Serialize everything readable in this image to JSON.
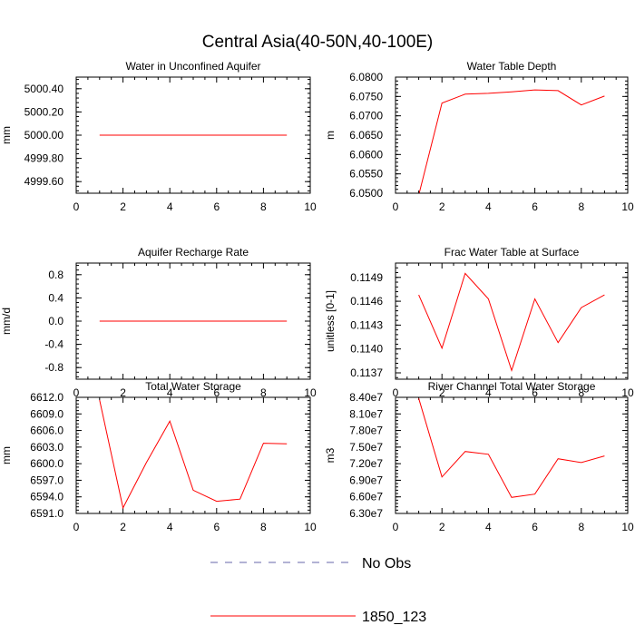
{
  "title": "Central Asia(40-50N,40-100E)",
  "colors": {
    "series": "#ff0000",
    "obs": "#6666aa",
    "axis": "#000000"
  },
  "legend": {
    "items": [
      {
        "label": "No Obs",
        "style": "dashed",
        "color": "#6666aa"
      },
      {
        "label": "1850_123",
        "style": "solid",
        "color": "#ff0000"
      }
    ]
  },
  "chart_data": [
    {
      "type": "line",
      "title": "Water in Unconfined Aquifer",
      "ylabel": "mm",
      "xlim": [
        0,
        10
      ],
      "ylim": [
        4999.5,
        5000.5
      ],
      "xticks": [
        0,
        2,
        4,
        6,
        8,
        10
      ],
      "xtick_labels": [
        "0",
        "2",
        "4",
        "6",
        "8",
        "10"
      ],
      "yticks": [
        4999.6,
        4999.8,
        5000.0,
        5000.2,
        5000.4
      ],
      "ytick_labels": [
        "4999.60",
        "4999.80",
        "5000.00",
        "5000.20",
        "5000.40"
      ],
      "series": [
        {
          "name": "1850_123",
          "x": [
            1,
            2,
            3,
            4,
            5,
            6,
            7,
            8,
            9
          ],
          "values": [
            5000,
            5000,
            5000,
            5000,
            5000,
            5000,
            5000,
            5000,
            5000
          ]
        }
      ]
    },
    {
      "type": "line",
      "title": "Water Table Depth",
      "ylabel": "m",
      "xlim": [
        0,
        10
      ],
      "ylim": [
        6.05,
        6.08
      ],
      "xticks": [
        0,
        2,
        4,
        6,
        8,
        10
      ],
      "xtick_labels": [
        "0",
        "2",
        "4",
        "6",
        "8",
        "10"
      ],
      "yticks": [
        6.05,
        6.055,
        6.06,
        6.065,
        6.07,
        6.075,
        6.08
      ],
      "ytick_labels": [
        "6.0500",
        "6.0550",
        "6.0600",
        "6.0650",
        "6.0700",
        "6.0750",
        "6.0800"
      ],
      "series": [
        {
          "name": "1850_123",
          "x": [
            1,
            2,
            3,
            4,
            5,
            6,
            7,
            8,
            9
          ],
          "values": [
            6.0495,
            6.0733,
            6.0756,
            6.0758,
            6.0762,
            6.0767,
            6.0765,
            6.0728,
            6.0751
          ]
        }
      ]
    },
    {
      "type": "line",
      "title": "Aquifer Recharge Rate",
      "ylabel": "mm/d",
      "xlim": [
        0,
        10
      ],
      "ylim": [
        -1,
        1
      ],
      "xticks": [
        0,
        2,
        4,
        6,
        8,
        10
      ],
      "xtick_labels": [
        "0",
        "2",
        "4",
        "6",
        "8",
        "10"
      ],
      "yticks": [
        -0.8,
        -0.4,
        0,
        0.4,
        0.8
      ],
      "ytick_labels": [
        "-0.8",
        "-0.4",
        "0.0",
        "0.4",
        "0.8"
      ],
      "series": [
        {
          "name": "1850_123",
          "x": [
            1,
            2,
            3,
            4,
            5,
            6,
            7,
            8,
            9
          ],
          "values": [
            0,
            0,
            0,
            0,
            0,
            0,
            0,
            0,
            0
          ]
        }
      ]
    },
    {
      "type": "line",
      "title": "Frac Water Table at Surface",
      "ylabel": "unitless [0-1]",
      "xlim": [
        0,
        10
      ],
      "ylim": [
        0.11362,
        0.11508
      ],
      "xticks": [
        0,
        2,
        4,
        6,
        8,
        10
      ],
      "xtick_labels": [
        "0",
        "2",
        "4",
        "6",
        "8",
        "10"
      ],
      "yticks": [
        0.1137,
        0.114,
        0.1143,
        0.1146,
        0.1149
      ],
      "ytick_labels": [
        "0.1137",
        "0.1140",
        "0.1143",
        "0.1146",
        "0.1149"
      ],
      "series": [
        {
          "name": "1850_123",
          "x": [
            1,
            2,
            3,
            4,
            5,
            6,
            7,
            8,
            9
          ],
          "values": [
            0.11468,
            0.11401,
            0.11495,
            0.11463,
            0.11373,
            0.11463,
            0.11408,
            0.11452,
            0.11468
          ]
        }
      ]
    },
    {
      "type": "line",
      "title": "Total Water Storage",
      "ylabel": "mm",
      "xlim": [
        0,
        10
      ],
      "ylim": [
        6591,
        6612
      ],
      "xticks": [
        0,
        2,
        4,
        6,
        8,
        10
      ],
      "xtick_labels": [
        "0",
        "2",
        "4",
        "6",
        "8",
        "10"
      ],
      "yticks": [
        6591,
        6594,
        6597,
        6600,
        6603,
        6606,
        6609,
        6612
      ],
      "ytick_labels": [
        "6591.0",
        "6594.0",
        "6597.0",
        "6600.0",
        "6603.0",
        "6606.0",
        "6609.0",
        "6612.0"
      ],
      "series": [
        {
          "name": "1850_123",
          "x": [
            1,
            2,
            3,
            4,
            5,
            6,
            7,
            8,
            9
          ],
          "values": [
            6611.5,
            6592.0,
            6600.2,
            6607.7,
            6595.2,
            6593.2,
            6593.6,
            6603.7,
            6603.6
          ]
        }
      ]
    },
    {
      "type": "line",
      "title": "River Channel Total Water Storage",
      "ylabel": "m3",
      "xlim": [
        0,
        10
      ],
      "ylim": [
        63000000,
        84000000
      ],
      "xticks": [
        0,
        2,
        4,
        6,
        8,
        10
      ],
      "xtick_labels": [
        "0",
        "2",
        "4",
        "6",
        "8",
        "10"
      ],
      "yticks": [
        63000000,
        66000000,
        69000000,
        72000000,
        75000000,
        78000000,
        81000000,
        84000000
      ],
      "ytick_labels": [
        "6.30e7",
        "6.60e7",
        "6.90e7",
        "7.20e7",
        "7.50e7",
        "7.80e7",
        "8.10e7",
        "8.40e7"
      ],
      "series": [
        {
          "name": "1850_123",
          "x": [
            1,
            2,
            3,
            4,
            5,
            6,
            7,
            8,
            9
          ],
          "values": [
            83800000,
            69600000,
            74200000,
            73700000,
            65900000,
            66500000,
            72900000,
            72200000,
            73400000
          ]
        }
      ]
    }
  ]
}
